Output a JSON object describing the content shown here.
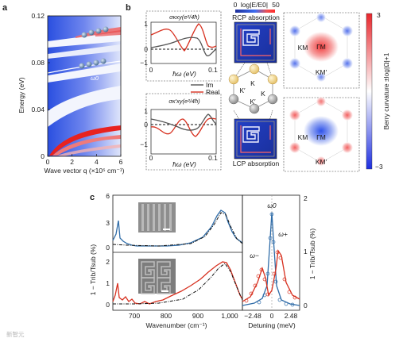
{
  "panel_labels": {
    "a": "a",
    "b": "b",
    "c": "c"
  },
  "panel_a": {
    "xlabel": "Wave vector q (×10⁵ cm⁻¹)",
    "ylabel": "Energy (eV)",
    "xticks": [
      "0",
      "2",
      "4",
      "6"
    ],
    "yticks": [
      "0",
      "0.04",
      "0.08",
      "0.12"
    ],
    "annotation": "ω0"
  },
  "panel_b": {
    "top_plot_title": "σκxy(e²/4ħ)",
    "bottom_plot_title": "σκ′xy(e²/4ħ)",
    "top_yticks": [
      "1",
      "0",
      "−1"
    ],
    "bottom_yticks": [
      "1",
      "0",
      "−1"
    ],
    "xtick_left": "0",
    "xtick_right": "0.1",
    "xlabel": "ħω (eV)",
    "legend": {
      "im": "Im",
      "real": "Real"
    },
    "colorbar_top": {
      "min": "0",
      "label": "log|E/E0|",
      "max": "50"
    },
    "rcp_label": "RCP absorption",
    "lcp_label": "LCP absorption",
    "node_labels": [
      "K",
      "K′",
      "K",
      "K′"
    ],
    "bz_labels_top": [
      "KM",
      "ΓM",
      "KM′"
    ],
    "bz_labels_bottom": [
      "KM",
      "ΓM",
      "KM′"
    ],
    "colorbar_right": {
      "max": "3",
      "min": "−3",
      "label": "Berry curvature ±log|Ω|+1"
    }
  },
  "panel_c": {
    "ylabel_left": "1 − Trib/Tsub (%)",
    "ylabel_right": "1 − Trib/Tsub (%)",
    "left_top_yticks": [
      "6",
      "3",
      "0"
    ],
    "left_bottom_yticks": [
      "2",
      "1",
      "0"
    ],
    "left_xticks": [
      "700",
      "800",
      "900",
      "1,000"
    ],
    "left_xlabel": "Wavenumber (cm⁻¹)",
    "right_yticks": [
      "2",
      "1",
      "0"
    ],
    "right_xticks": [
      "−2.48",
      "0",
      "2.48"
    ],
    "right_xlabel": "Detuning (meV)",
    "annot_omega0": "ω0",
    "annot_omega_plus": "ω+",
    "annot_omega_minus": "ω−"
  },
  "watermark": "新智元"
}
